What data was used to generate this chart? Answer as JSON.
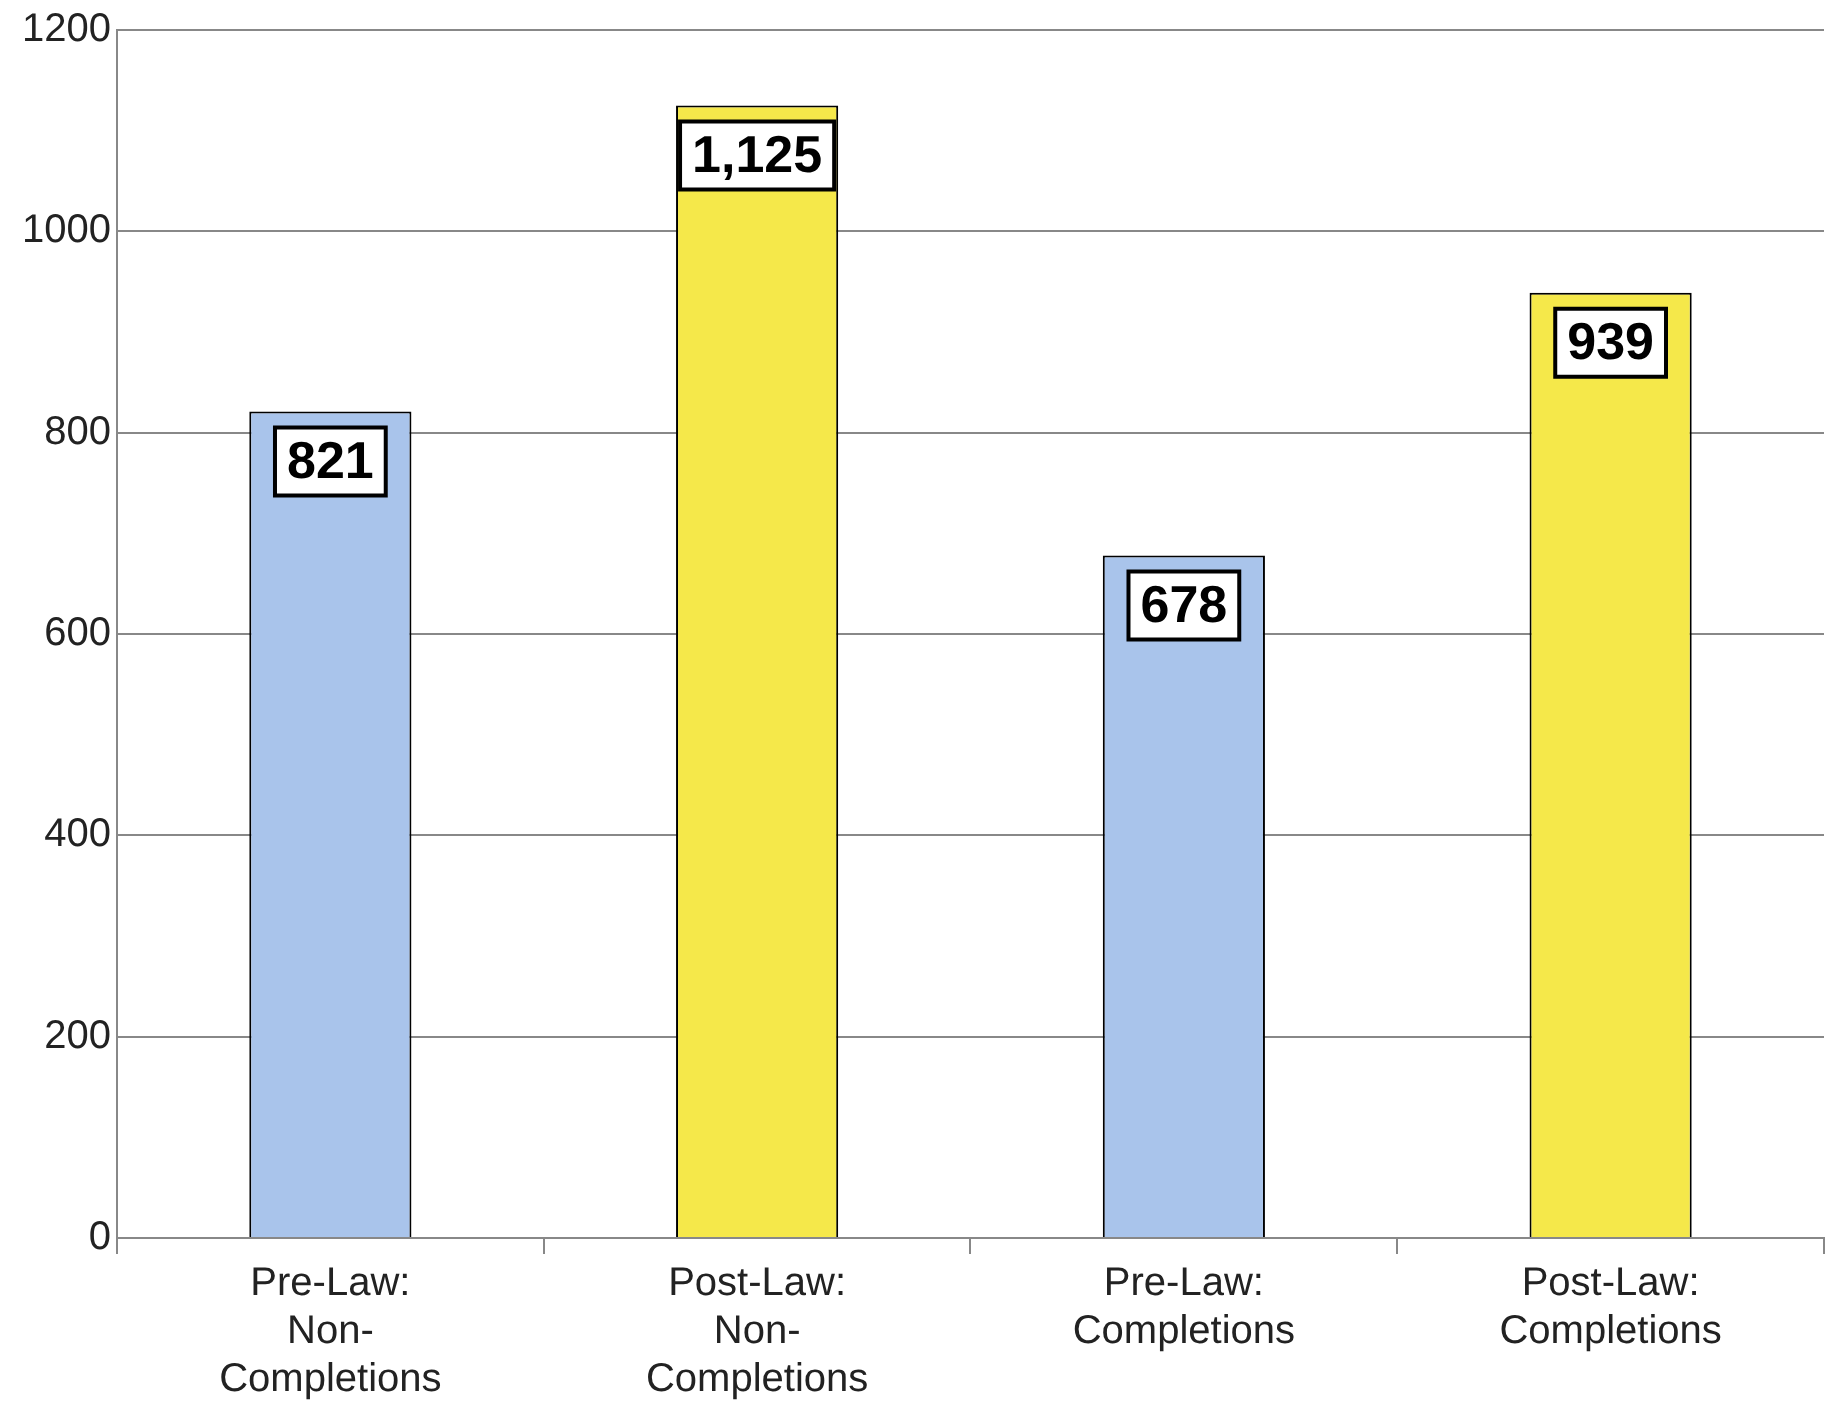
{
  "chart_data": {
    "type": "bar",
    "categories": [
      "Pre-Law:\nNon-\nCompletions",
      "Post-Law:\nNon-\nCompletions",
      "Pre-Law:\nCompletions",
      "Post-Law:\nCompletions"
    ],
    "values": [
      821,
      1125,
      678,
      939
    ],
    "colors": [
      "#a9c4eb",
      "#f5e84a",
      "#a9c4eb",
      "#f5e84a"
    ],
    "value_labels": [
      "821",
      "1,125",
      "678",
      "939"
    ],
    "ylim": [
      0,
      1200
    ],
    "yticks": [
      0,
      200,
      400,
      600,
      800,
      1000,
      1200
    ],
    "grid": "y",
    "legend": false
  }
}
